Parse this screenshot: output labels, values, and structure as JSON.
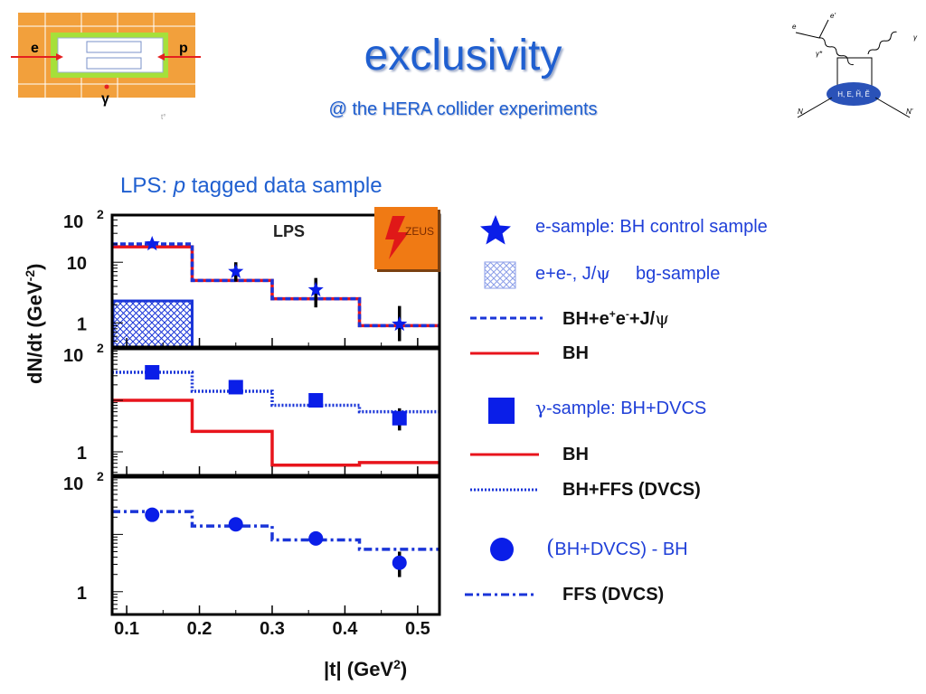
{
  "header": {
    "title": "exclusivity",
    "subtitle": "@ the HERA collider experiments"
  },
  "detector_sketch": {
    "label_e": "e",
    "label_p": "p",
    "label_gamma": "γ",
    "mark": "t°"
  },
  "feynman": {
    "label_e": "e",
    "label_e_prime": "e'",
    "label_gamma_star": "γ*",
    "label_gamma": "γ",
    "label_N": "N",
    "label_N_prime": "N'",
    "blob": "H, E, H̃, Ẽ"
  },
  "sample_caption": {
    "prefix": "LPS: ",
    "italic": "p",
    "suffix": " tagged data sample"
  },
  "legend": {
    "e_sample": "e-sample:  BH control sample",
    "bg_sample_a": "e+e-, J/",
    "bg_sample_psi": "ψ",
    "bg_sample_b": "bg-sample",
    "bh_ee_jpsi_a": "BH+e",
    "bh_ee_jpsi_plus": "+",
    "bh_ee_jpsi_b": "e",
    "bh_ee_jpsi_minus": "-",
    "bh_ee_jpsi_c": "+J/",
    "bh_ee_jpsi_psi": "ψ",
    "bh_1": "BH",
    "gamma_sample_sym": "γ",
    "gamma_sample_text": "-sample:  BH+DVCS",
    "bh_2": "BH",
    "bh_ffs": "BH+FFS (DVCS)",
    "diff_paren_open": "(",
    "diff_text": "BH+DVCS) - BH",
    "ffs": "FFS (DVCS)"
  },
  "colors": {
    "accent_blue": "#1f5fd0",
    "marker_blue": "#0a1ee8",
    "bh_red": "#e8141c",
    "zeus_orange": "#f07a14"
  },
  "chart_data": {
    "type": "scatter",
    "ylabel": "dN/dt (GeV",
    "ylabel_exp": "-2",
    "ylabel_close": ")",
    "xlabel": "|t| (GeV",
    "xlabel_exp": "2",
    "xlabel_close": ")",
    "x_range": [
      0.08,
      0.53
    ],
    "x_ticks": [
      "0.1",
      "0.2",
      "0.3",
      "0.4",
      "0.5"
    ],
    "x_tick_values": [
      0.1,
      0.2,
      0.3,
      0.4,
      0.5
    ],
    "log_y": true,
    "panel_label": "LPS",
    "logo": "ZEUS",
    "bin_edges": [
      0.08,
      0.19,
      0.3,
      0.42,
      0.53
    ],
    "panels": [
      {
        "name": "e-sample",
        "ylim": [
          0.4,
          60
        ],
        "y_ticks": [
          {
            "label": "10",
            "value": 10
          },
          {
            "label": "1",
            "value": 1
          }
        ],
        "top_label": "10",
        "top_label_exp": "2",
        "points": [
          {
            "x": 0.135,
            "y": 20,
            "err": [
              18,
              22
            ],
            "marker": "star"
          },
          {
            "x": 0.25,
            "y": 7,
            "err": [
              4.8,
              10
            ],
            "marker": "star"
          },
          {
            "x": 0.36,
            "y": 3.5,
            "err": [
              1.8,
              5.5
            ],
            "marker": "star"
          },
          {
            "x": 0.475,
            "y": 0.95,
            "err": [
              0.5,
              1.9
            ],
            "marker": "star"
          }
        ],
        "histograms": [
          {
            "name": "BH",
            "style": "solid-red",
            "values": [
              18,
              5,
              2.5,
              0.9
            ]
          },
          {
            "name": "BH+e+e-+J/ψ",
            "style": "dash-blue",
            "values": [
              20,
              5,
              2.5,
              0.9
            ]
          }
        ],
        "bg_hatched": [
          {
            "x0": 0.08,
            "x1": 0.19,
            "y": 2.3
          }
        ]
      },
      {
        "name": "γ-sample",
        "ylim": [
          0.35,
          100
        ],
        "y_ticks": [
          {
            "label": "1",
            "value": 1
          }
        ],
        "top_label": "10",
        "top_label_exp": "2",
        "points": [
          {
            "x": 0.135,
            "y": 35,
            "err": [
              32,
              38
            ],
            "marker": "square"
          },
          {
            "x": 0.25,
            "y": 18,
            "err": [
              16,
              20
            ],
            "marker": "square"
          },
          {
            "x": 0.36,
            "y": 10,
            "err": [
              8.5,
              12
            ],
            "marker": "square"
          },
          {
            "x": 0.475,
            "y": 4.5,
            "err": [
              2.6,
              7
            ],
            "marker": "square"
          }
        ],
        "histograms": [
          {
            "name": "BH",
            "style": "solid-red",
            "values": [
              10,
              2.5,
              0.55,
              0.62
            ]
          },
          {
            "name": "BH+FFS (DVCS)",
            "style": "dot-blue",
            "values": [
              35,
              15,
              8,
              6
            ]
          }
        ]
      },
      {
        "name": "(BH+DVCS) - BH",
        "ylim": [
          0.4,
          100
        ],
        "y_ticks": [
          {
            "label": "1",
            "value": 1
          }
        ],
        "top_label": "10",
        "top_label_exp": "2",
        "points": [
          {
            "x": 0.135,
            "y": 22,
            "err": [
              20,
              24
            ],
            "marker": "circle"
          },
          {
            "x": 0.25,
            "y": 15,
            "err": [
              13,
              17
            ],
            "marker": "circle"
          },
          {
            "x": 0.36,
            "y": 8.5,
            "err": [
              7,
              10.5
            ],
            "marker": "circle"
          },
          {
            "x": 0.475,
            "y": 3.2,
            "err": [
              1.8,
              5
            ],
            "marker": "circle"
          }
        ],
        "histograms": [
          {
            "name": "FFS (DVCS)",
            "style": "dashdot-blue",
            "values": [
              25,
              14,
              8,
              5.5
            ]
          }
        ]
      }
    ]
  }
}
